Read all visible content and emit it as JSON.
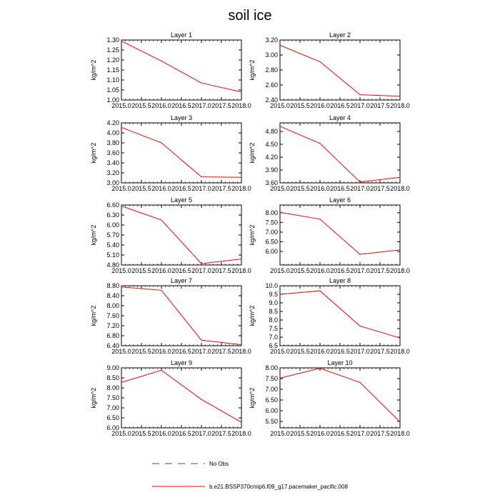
{
  "title": "soil ice",
  "legend": {
    "obs_label": "No Obs",
    "obs_color": "#4444aa",
    "model_label": "b.e21.BSSP370cmip6.f09_g17.pacemaker_pacific.008",
    "model_color": "#ff0000"
  },
  "chart_data": [
    {
      "type": "line",
      "title": "Layer 1",
      "xlabel": "",
      "ylabel": "kg/m^2",
      "x": [
        2015.0,
        2016.0,
        2017.0,
        2018.0
      ],
      "xlim": [
        2015.0,
        2018.0
      ],
      "xticks": [
        "2015.0",
        "2015.5",
        "2016.0",
        "2016.5",
        "2017.0",
        "2017.5",
        "2018.0"
      ],
      "ylim": [
        1.0,
        1.3
      ],
      "yticks": [
        {
          "v": 1.0,
          "label": "1.00"
        },
        {
          "v": 1.05,
          "label": "1.05"
        },
        {
          "v": 1.1,
          "label": "1.10"
        },
        {
          "v": 1.15,
          "label": "1.15"
        },
        {
          "v": 1.2,
          "label": "1.20"
        },
        {
          "v": 1.25,
          "label": "1.25"
        },
        {
          "v": 1.3,
          "label": "1.30"
        }
      ],
      "series": [
        {
          "values": [
            1.295,
            1.195,
            1.085,
            1.04
          ]
        }
      ]
    },
    {
      "type": "line",
      "title": "Layer 2",
      "xlabel": "",
      "ylabel": "kg/m^2",
      "x": [
        2015.0,
        2016.0,
        2017.0,
        2018.0
      ],
      "xlim": [
        2015.0,
        2018.0
      ],
      "xticks": [
        "2015.0",
        "2015.5",
        "2016.0",
        "2016.5",
        "2017.0",
        "2017.5",
        "2018.0"
      ],
      "ylim": [
        2.4,
        3.2
      ],
      "yticks": [
        {
          "v": 2.4,
          "label": "2.40"
        },
        {
          "v": 2.6,
          "label": "2.60"
        },
        {
          "v": 2.8,
          "label": "2.80"
        },
        {
          "v": 3.0,
          "label": "3.00"
        },
        {
          "v": 3.2,
          "label": "3.20"
        }
      ],
      "series": [
        {
          "values": [
            3.13,
            2.91,
            2.47,
            2.45
          ]
        }
      ]
    },
    {
      "type": "line",
      "title": "Layer 3",
      "xlabel": "",
      "ylabel": "kg/m^2",
      "x": [
        2015.0,
        2016.0,
        2017.0,
        2018.0
      ],
      "xlim": [
        2015.0,
        2018.0
      ],
      "xticks": [
        "2015.0",
        "2015.5",
        "2016.0",
        "2016.5",
        "2017.0",
        "2017.5",
        "2018.0"
      ],
      "ylim": [
        3.0,
        4.2
      ],
      "yticks": [
        {
          "v": 3.0,
          "label": "3.00"
        },
        {
          "v": 3.2,
          "label": "3.20"
        },
        {
          "v": 3.4,
          "label": "3.40"
        },
        {
          "v": 3.6,
          "label": "3.60"
        },
        {
          "v": 3.8,
          "label": "3.80"
        },
        {
          "v": 4.0,
          "label": "4.00"
        },
        {
          "v": 4.2,
          "label": "4.20"
        }
      ],
      "series": [
        {
          "values": [
            4.11,
            3.8,
            3.12,
            3.11
          ]
        }
      ]
    },
    {
      "type": "line",
      "title": "Layer 4",
      "xlabel": "",
      "ylabel": "kg/m^2",
      "x": [
        2015.0,
        2016.0,
        2017.0,
        2018.0
      ],
      "xlim": [
        2015.0,
        2018.0
      ],
      "xticks": [
        "2015.0",
        "2015.5",
        "2016.0",
        "2016.5",
        "2017.0",
        "2017.5",
        "2018.0"
      ],
      "ylim": [
        3.6,
        5.0
      ],
      "yticks": [
        {
          "v": 3.6,
          "label": "3.60"
        },
        {
          "v": 3.9,
          "label": "3.90"
        },
        {
          "v": 4.2,
          "label": "4.20"
        },
        {
          "v": 4.5,
          "label": "4.50"
        },
        {
          "v": 4.8,
          "label": "4.80"
        }
      ],
      "series": [
        {
          "values": [
            4.92,
            4.52,
            3.62,
            3.73
          ]
        }
      ]
    },
    {
      "type": "line",
      "title": "Layer 5",
      "xlabel": "",
      "ylabel": "kg/m^2",
      "x": [
        2015.0,
        2016.0,
        2017.0,
        2018.0
      ],
      "xlim": [
        2015.0,
        2018.0
      ],
      "xticks": [
        "2015.0",
        "2015.5",
        "2016.0",
        "2016.5",
        "2017.0",
        "2017.5",
        "2018.0"
      ],
      "ylim": [
        4.8,
        6.6
      ],
      "yticks": [
        {
          "v": 4.8,
          "label": "4.80"
        },
        {
          "v": 5.1,
          "label": "5.10"
        },
        {
          "v": 5.4,
          "label": "5.40"
        },
        {
          "v": 5.7,
          "label": "5.70"
        },
        {
          "v": 6.0,
          "label": "6.00"
        },
        {
          "v": 6.3,
          "label": "6.30"
        },
        {
          "v": 6.6,
          "label": "6.60"
        }
      ],
      "series": [
        {
          "values": [
            6.57,
            6.15,
            4.84,
            4.98
          ]
        }
      ]
    },
    {
      "type": "line",
      "title": "Layer 6",
      "xlabel": "",
      "ylabel": "kg/m^2",
      "x": [
        2015.0,
        2016.0,
        2017.0,
        2018.0
      ],
      "xlim": [
        2015.0,
        2018.0
      ],
      "xticks": [
        "2015.0",
        "2015.5",
        "2016.0",
        "2016.5",
        "2017.0",
        "2017.5",
        "2018.0"
      ],
      "ylim": [
        5.3,
        8.4
      ],
      "yticks": [
        {
          "v": 6.0,
          "label": "6.00"
        },
        {
          "v": 6.5,
          "label": "6.50"
        },
        {
          "v": 7.0,
          "label": "7.00"
        },
        {
          "v": 7.5,
          "label": "7.50"
        },
        {
          "v": 8.0,
          "label": "8.00"
        }
      ],
      "series": [
        {
          "values": [
            8.02,
            7.67,
            5.85,
            6.08
          ]
        }
      ]
    },
    {
      "type": "line",
      "title": "Layer 7",
      "xlabel": "",
      "ylabel": "kg/m^2",
      "x": [
        2015.0,
        2016.0,
        2017.0,
        2018.0
      ],
      "xlim": [
        2015.0,
        2018.0
      ],
      "xticks": [
        "2015.0",
        "2015.5",
        "2016.0",
        "2016.5",
        "2017.0",
        "2017.5",
        "2018.0"
      ],
      "ylim": [
        6.4,
        8.8
      ],
      "yticks": [
        {
          "v": 6.4,
          "label": "6.40"
        },
        {
          "v": 6.8,
          "label": "6.80"
        },
        {
          "v": 7.2,
          "label": "7.20"
        },
        {
          "v": 7.6,
          "label": "7.60"
        },
        {
          "v": 8.0,
          "label": "8.00"
        },
        {
          "v": 8.4,
          "label": "8.40"
        },
        {
          "v": 8.8,
          "label": "8.80"
        }
      ],
      "series": [
        {
          "values": [
            8.75,
            8.62,
            6.62,
            6.44
          ]
        }
      ]
    },
    {
      "type": "line",
      "title": "Layer 8",
      "xlabel": "",
      "ylabel": "kg/m^2",
      "x": [
        2015.0,
        2016.0,
        2017.0,
        2018.0
      ],
      "xlim": [
        2015.0,
        2018.0
      ],
      "xticks": [
        "2015.0",
        "2015.5",
        "2016.0",
        "2016.5",
        "2017.0",
        "2017.5",
        "2018.0"
      ],
      "ylim": [
        6.5,
        10.0
      ],
      "yticks": [
        {
          "v": 6.5,
          "label": "6.5"
        },
        {
          "v": 7.0,
          "label": "7.0"
        },
        {
          "v": 7.5,
          "label": "7.5"
        },
        {
          "v": 8.0,
          "label": "8.0"
        },
        {
          "v": 8.5,
          "label": "8.5"
        },
        {
          "v": 9.0,
          "label": "9.0"
        },
        {
          "v": 9.5,
          "label": "9.5"
        },
        {
          "v": 10.0,
          "label": "10.0"
        }
      ],
      "series": [
        {
          "values": [
            9.5,
            9.7,
            7.65,
            6.95
          ]
        }
      ]
    },
    {
      "type": "line",
      "title": "Layer 9",
      "xlabel": "",
      "ylabel": "kg/m^2",
      "x": [
        2015.0,
        2016.0,
        2017.0,
        2018.0
      ],
      "xlim": [
        2015.0,
        2018.0
      ],
      "xticks": [
        "2015.0",
        "2015.5",
        "2016.0",
        "2016.5",
        "2017.0",
        "2017.5",
        "2018.0"
      ],
      "ylim": [
        6.0,
        9.0
      ],
      "yticks": [
        {
          "v": 6.0,
          "label": "6.00"
        },
        {
          "v": 6.5,
          "label": "6.50"
        },
        {
          "v": 7.0,
          "label": "7.00"
        },
        {
          "v": 7.5,
          "label": "7.50"
        },
        {
          "v": 8.0,
          "label": "8.00"
        },
        {
          "v": 8.5,
          "label": "8.50"
        },
        {
          "v": 9.0,
          "label": "9.00"
        }
      ],
      "series": [
        {
          "values": [
            8.27,
            8.88,
            7.42,
            6.28
          ]
        }
      ]
    },
    {
      "type": "line",
      "title": "Layer 10",
      "xlabel": "",
      "ylabel": "kg/m^2",
      "x": [
        2015.0,
        2016.0,
        2017.0,
        2018.0
      ],
      "xlim": [
        2015.0,
        2018.0
      ],
      "xticks": [
        "2015.0",
        "2015.5",
        "2016.0",
        "2016.5",
        "2017.0",
        "2017.5",
        "2018.0"
      ],
      "ylim": [
        5.2,
        8.0
      ],
      "yticks": [
        {
          "v": 5.5,
          "label": "5.50"
        },
        {
          "v": 6.0,
          "label": "6.00"
        },
        {
          "v": 6.5,
          "label": "6.50"
        },
        {
          "v": 7.0,
          "label": "7.00"
        },
        {
          "v": 7.5,
          "label": "7.50"
        },
        {
          "v": 8.0,
          "label": "8.00"
        }
      ],
      "series": [
        {
          "values": [
            7.52,
            7.98,
            7.32,
            5.48
          ]
        }
      ]
    }
  ]
}
